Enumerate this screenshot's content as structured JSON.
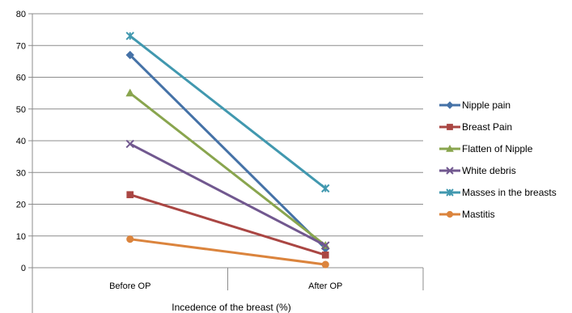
{
  "chart_data": {
    "type": "line",
    "categories": [
      "Before OP",
      "After OP"
    ],
    "xlabel": "Incedence of the breast (%)",
    "ylim": [
      0,
      80
    ],
    "yticks": [
      0,
      10,
      20,
      30,
      40,
      50,
      60,
      70,
      80
    ],
    "grid": true,
    "legend_position": "right",
    "series": [
      {
        "name": "Nipple pain",
        "values": [
          67,
          6
        ],
        "color": "#4572A7",
        "marker": "diamond"
      },
      {
        "name": "Breast Pain",
        "values": [
          23,
          4
        ],
        "color": "#AA4643",
        "marker": "square"
      },
      {
        "name": "Flatten of Nipple",
        "values": [
          55,
          7
        ],
        "color": "#89A54E",
        "marker": "triangle"
      },
      {
        "name": "White debris",
        "values": [
          39,
          7
        ],
        "color": "#71588F",
        "marker": "x"
      },
      {
        "name": "Masses in the breasts",
        "values": [
          73,
          25
        ],
        "color": "#4198AF",
        "marker": "star"
      },
      {
        "name": "Mastitis",
        "values": [
          9,
          1
        ],
        "color": "#DB843D",
        "marker": "circle"
      }
    ]
  }
}
